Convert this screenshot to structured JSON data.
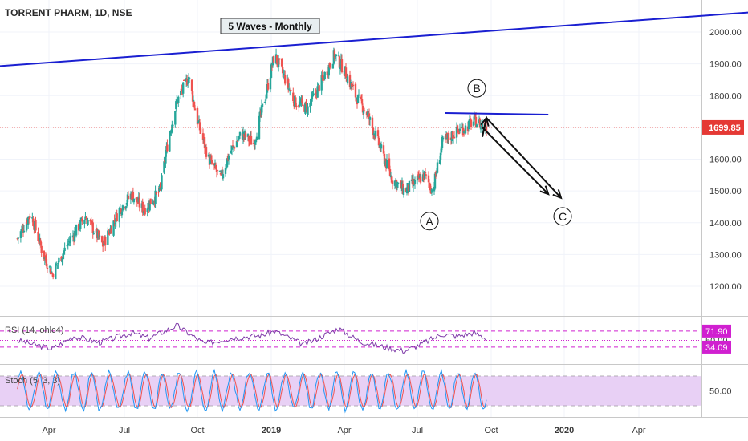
{
  "header": {
    "symbol_line": "TORRENT PHARM, 1D, NSE",
    "annotation": "5 Waves - Monthly"
  },
  "colors": {
    "up": "#26a69a",
    "down": "#ef5350",
    "trendline": "#1a1fd1",
    "price_line": "#e53935",
    "indicator": "#d020d0",
    "stoch_fill": "#e8d0f5",
    "stoch_k": "#2196f3",
    "stoch_d": "#ef5350",
    "axis_text": "#3a3a3a"
  },
  "chart_data": [
    {
      "type": "candlestick",
      "title": "TORRENT PHARM, 1D, NSE",
      "x_tick_labels": [
        "Apr",
        "Jul",
        "Oct",
        "2019",
        "Apr",
        "Jul",
        "Oct",
        "2020",
        "Apr"
      ],
      "y_tick_labels": [
        "2000.00",
        "1900.00",
        "1800.00",
        "1700.00",
        "1600.00",
        "1500.00",
        "1400.00",
        "1300.00",
        "1200.00"
      ],
      "ylim": [
        1110,
        2090
      ],
      "last_price": 1699.85,
      "last_price_label": "1699.85",
      "approx_close_path": [
        {
          "date": "2018-02-22",
          "close": 1350
        },
        {
          "date": "2018-03-10",
          "close": 1430
        },
        {
          "date": "2018-03-25",
          "close": 1300
        },
        {
          "date": "2018-04-05",
          "close": 1240
        },
        {
          "date": "2018-04-25",
          "close": 1340
        },
        {
          "date": "2018-05-15",
          "close": 1420
        },
        {
          "date": "2018-06-05",
          "close": 1330
        },
        {
          "date": "2018-06-25",
          "close": 1440
        },
        {
          "date": "2018-07-10",
          "close": 1490
        },
        {
          "date": "2018-07-25",
          "close": 1440
        },
        {
          "date": "2018-08-15",
          "close": 1500
        },
        {
          "date": "2018-08-25",
          "close": 1660
        },
        {
          "date": "2018-09-05",
          "close": 1780
        },
        {
          "date": "2018-09-20",
          "close": 1860
        },
        {
          "date": "2018-10-01",
          "close": 1720
        },
        {
          "date": "2018-10-15",
          "close": 1600
        },
        {
          "date": "2018-10-30",
          "close": 1540
        },
        {
          "date": "2018-11-10",
          "close": 1620
        },
        {
          "date": "2018-11-25",
          "close": 1680
        },
        {
          "date": "2018-12-10",
          "close": 1650
        },
        {
          "date": "2018-12-25",
          "close": 1800
        },
        {
          "date": "2019-01-05",
          "close": 1930
        },
        {
          "date": "2019-01-15",
          "close": 1870
        },
        {
          "date": "2019-01-30",
          "close": 1780
        },
        {
          "date": "2019-02-15",
          "close": 1760
        },
        {
          "date": "2019-03-05",
          "close": 1850
        },
        {
          "date": "2019-03-20",
          "close": 1930
        },
        {
          "date": "2019-04-01",
          "close": 1880
        },
        {
          "date": "2019-04-15",
          "close": 1800
        },
        {
          "date": "2019-04-30",
          "close": 1740
        },
        {
          "date": "2019-05-15",
          "close": 1640
        },
        {
          "date": "2019-05-30",
          "close": 1540
        },
        {
          "date": "2019-06-15",
          "close": 1500
        },
        {
          "date": "2019-06-30",
          "close": 1530
        },
        {
          "date": "2019-07-10",
          "close": 1550
        },
        {
          "date": "2019-07-20",
          "close": 1500
        },
        {
          "date": "2019-08-01",
          "close": 1650
        },
        {
          "date": "2019-08-15",
          "close": 1680
        },
        {
          "date": "2019-08-30",
          "close": 1700
        },
        {
          "date": "2019-09-10",
          "close": 1720
        },
        {
          "date": "2019-09-25",
          "close": 1700
        }
      ],
      "wave_labels": [
        {
          "label": "A",
          "date": "2019-07-16",
          "price": 1405
        },
        {
          "label": "B",
          "date": "2019-09-13",
          "price": 1823
        },
        {
          "label": "C",
          "date": "2019-12-30",
          "price": 1420
        }
      ],
      "trendlines": [
        {
          "role": "upper",
          "from": {
            "date": "2017-12-20",
            "price": 1885
          },
          "to": {
            "date": "2020-08-25",
            "price": 2064
          }
        },
        {
          "role": "resistance",
          "from": {
            "date": "2019-08-05",
            "price": 1745
          },
          "to": {
            "date": "2019-12-12",
            "price": 1740
          }
        }
      ],
      "arrows": [
        {
          "from": {
            "date": "2019-09-20",
            "price": 1670
          },
          "to": {
            "date": "2019-09-25",
            "price": 1730
          }
        },
        {
          "from": {
            "date": "2019-09-25",
            "price": 1730
          },
          "to": {
            "date": "2019-12-28",
            "price": 1478
          }
        },
        {
          "from": {
            "date": "2019-09-20",
            "price": 1700
          },
          "to": {
            "date": "2019-12-12",
            "price": 1490
          }
        }
      ]
    },
    {
      "type": "line",
      "title": "RSI (14, ohlc4)",
      "ylim": [
        0,
        100
      ],
      "levels": [
        71.9,
        50.0,
        34.09
      ],
      "level_labels": [
        "71.90",
        "50.00",
        "34.09"
      ],
      "approx_rsi": [
        {
          "date": "2018-02-22",
          "value": 50
        },
        {
          "date": "2018-03-15",
          "value": 40
        },
        {
          "date": "2018-04-05",
          "value": 30
        },
        {
          "date": "2018-05-01",
          "value": 60
        },
        {
          "date": "2018-06-01",
          "value": 45
        },
        {
          "date": "2018-07-10",
          "value": 68
        },
        {
          "date": "2018-08-01",
          "value": 55
        },
        {
          "date": "2018-09-05",
          "value": 85
        },
        {
          "date": "2018-10-10",
          "value": 42
        },
        {
          "date": "2018-11-10",
          "value": 55
        },
        {
          "date": "2018-12-20",
          "value": 62
        },
        {
          "date": "2019-01-05",
          "value": 72
        },
        {
          "date": "2019-02-10",
          "value": 40
        },
        {
          "date": "2019-03-25",
          "value": 78
        },
        {
          "date": "2019-04-20",
          "value": 48
        },
        {
          "date": "2019-05-20",
          "value": 35
        },
        {
          "date": "2019-06-15",
          "value": 25
        },
        {
          "date": "2019-07-10",
          "value": 45
        },
        {
          "date": "2019-08-01",
          "value": 65
        },
        {
          "date": "2019-08-20",
          "value": 60
        },
        {
          "date": "2019-09-10",
          "value": 68
        },
        {
          "date": "2019-09-25",
          "value": 55
        }
      ]
    },
    {
      "type": "line",
      "title": "Stoch (5, 3, 3)",
      "ylim": [
        0,
        100
      ],
      "levels": [
        80,
        50,
        20
      ],
      "level_labels": [
        "50.00"
      ],
      "series": [
        {
          "name": "K"
        },
        {
          "name": "D"
        }
      ]
    }
  ]
}
